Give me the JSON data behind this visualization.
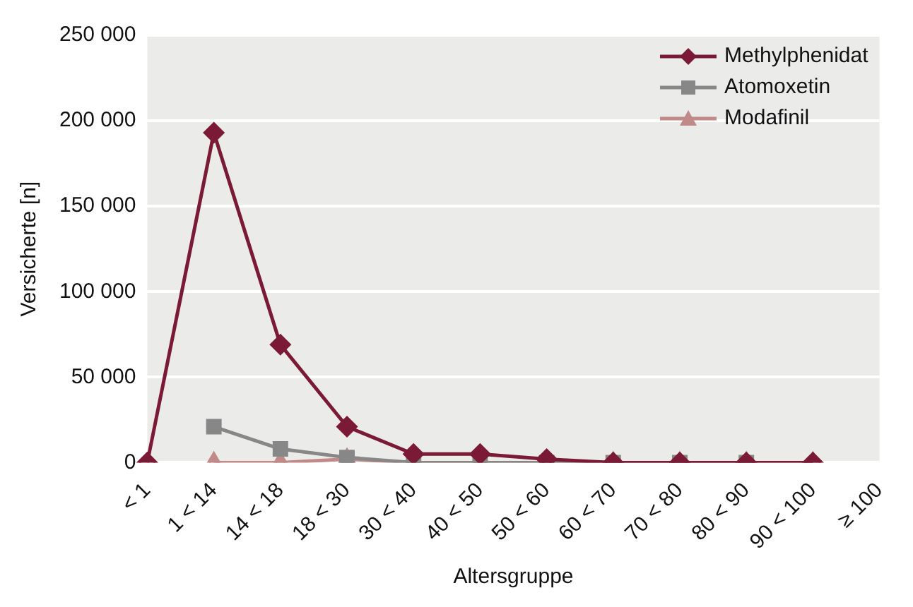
{
  "chart_data": {
    "type": "line",
    "xlabel": "Altersgruppe",
    "ylabel": "Versicherte [n]",
    "categories": [
      "< 1",
      "1 < 14",
      "14 < 18",
      "18 < 30",
      "30 < 40",
      "40 < 50",
      "50 < 60",
      "60 < 70",
      "70 < 80",
      "80 < 90",
      "90 < 100",
      "≥ 100"
    ],
    "series": [
      {
        "name": "Methylphenidat",
        "color": "#7b1a36",
        "marker": "diamond",
        "values": [
          0,
          193000,
          69000,
          21000,
          5000,
          5000,
          2000,
          0,
          0,
          0,
          0,
          null
        ]
      },
      {
        "name": "Atomoxetin",
        "color": "#878787",
        "marker": "square",
        "values": [
          null,
          21000,
          8000,
          3000,
          0,
          0,
          0,
          0,
          0,
          0,
          null,
          null
        ]
      },
      {
        "name": "Modafinil",
        "color": "#c08a88",
        "marker": "triangle",
        "values": [
          null,
          0,
          0,
          2000,
          0,
          0,
          0,
          0,
          0,
          0,
          0,
          null
        ]
      }
    ],
    "ylim": [
      0,
      250000
    ],
    "yticks": [
      {
        "value": 0,
        "label": "0"
      },
      {
        "value": 50000,
        "label": "50 000"
      },
      {
        "value": 100000,
        "label": "100 000"
      },
      {
        "value": 150000,
        "label": "150 000"
      },
      {
        "value": 200000,
        "label": "200 000"
      },
      {
        "value": 250000,
        "label": "250 000"
      }
    ],
    "grid": "y",
    "legend": "top right",
    "line_style": "solid"
  }
}
